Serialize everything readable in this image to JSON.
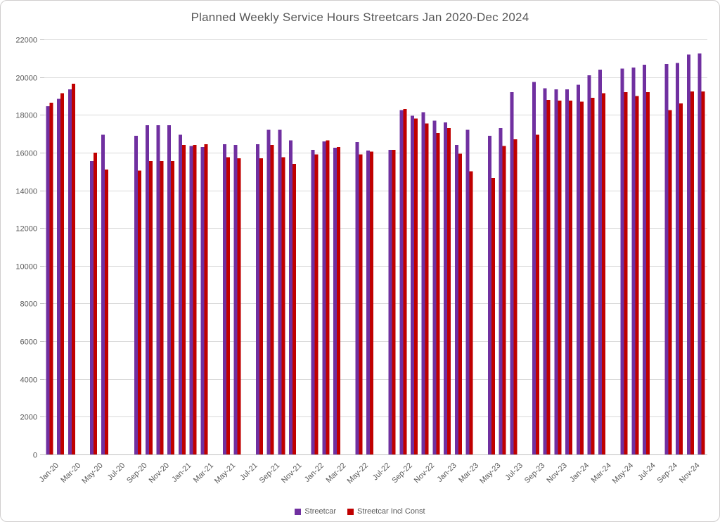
{
  "title": "Planned Weekly Service Hours Streetcars Jan 2020-Dec 2024",
  "legend": {
    "items": [
      {
        "label": "Streetcar",
        "color": "#7030A0"
      },
      {
        "label": "Streetcar Incl Const",
        "color": "#C00000"
      }
    ]
  },
  "chart_data": {
    "type": "bar",
    "title": "Planned Weekly Service Hours Streetcars Jan 2020-Dec 2024",
    "xlabel": "",
    "ylabel": "",
    "ylim": [
      0,
      22000
    ],
    "y_tick_step": 2000,
    "x_tick_every": 2,
    "grid": true,
    "legend_position": "bottom",
    "categories": [
      "Jan-20",
      "Feb-20",
      "Mar-20",
      "Apr-20",
      "May-20",
      "Jun-20",
      "Jul-20",
      "Aug-20",
      "Sep-20",
      "Oct-20",
      "Nov-20",
      "Dec-20",
      "Jan-21",
      "Feb-21",
      "Mar-21",
      "Apr-21",
      "May-21",
      "Jun-21",
      "Jul-21",
      "Aug-21",
      "Sep-21",
      "Oct-21",
      "Nov-21",
      "Dec-21",
      "Jan-22",
      "Feb-22",
      "Mar-22",
      "Apr-22",
      "May-22",
      "Jun-22",
      "Jul-22",
      "Aug-22",
      "Sep-22",
      "Oct-22",
      "Nov-22",
      "Dec-22",
      "Jan-23",
      "Feb-23",
      "Mar-23",
      "Apr-23",
      "May-23",
      "Jun-23",
      "Jul-23",
      "Aug-23",
      "Sep-23",
      "Oct-23",
      "Nov-23",
      "Dec-23",
      "Jan-24",
      "Feb-24",
      "Mar-24",
      "Apr-24",
      "May-24",
      "Jun-24",
      "Jul-24",
      "Aug-24",
      "Sep-24",
      "Oct-24",
      "Nov-24",
      "Dec-24"
    ],
    "series": [
      {
        "name": "Streetcar",
        "color": "#7030A0",
        "values": [
          18450,
          18850,
          19350,
          null,
          15550,
          16950,
          null,
          null,
          16900,
          17450,
          17450,
          17450,
          16950,
          16350,
          16300,
          null,
          16450,
          16400,
          null,
          16450,
          17200,
          17200,
          16650,
          null,
          16150,
          16600,
          16250,
          null,
          16550,
          16100,
          null,
          16150,
          18250,
          17950,
          18150,
          17700,
          17600,
          16400,
          17200,
          null,
          16900,
          17300,
          19200,
          null,
          19750,
          19400,
          19350,
          19350,
          19600,
          20100,
          20400,
          null,
          20450,
          20500,
          20650,
          null,
          20700,
          20750,
          21200,
          21250
        ]
      },
      {
        "name": "Streetcar Incl Const",
        "color": "#C00000",
        "values": [
          18650,
          19150,
          19650,
          null,
          16000,
          15100,
          null,
          null,
          15050,
          15550,
          15550,
          15550,
          16400,
          16400,
          16450,
          null,
          15750,
          15700,
          null,
          15700,
          16400,
          15750,
          15400,
          null,
          15900,
          16650,
          16300,
          null,
          15900,
          16050,
          null,
          16150,
          18300,
          17800,
          17550,
          17050,
          17300,
          15950,
          15000,
          null,
          14650,
          16350,
          16700,
          null,
          16950,
          18800,
          18750,
          18750,
          18700,
          18900,
          19150,
          null,
          19200,
          19000,
          19200,
          null,
          18250,
          18600,
          19250,
          19250
        ]
      }
    ]
  },
  "colors": {
    "grid": "#D9D9D9",
    "axis": "#BFBFBF",
    "text": "#595959"
  }
}
